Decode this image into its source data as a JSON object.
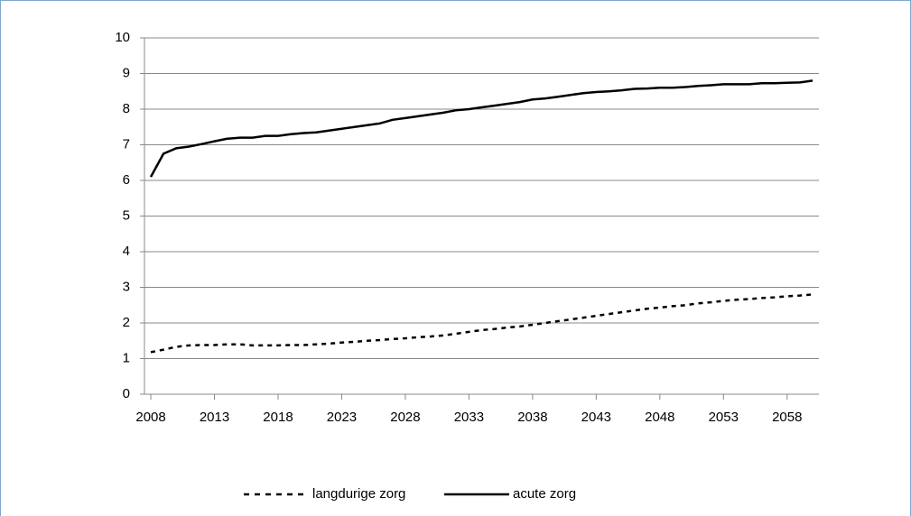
{
  "chart_data": {
    "type": "line",
    "x": [
      2008,
      2009,
      2010,
      2011,
      2012,
      2013,
      2014,
      2015,
      2016,
      2017,
      2018,
      2019,
      2020,
      2021,
      2022,
      2023,
      2024,
      2025,
      2026,
      2027,
      2028,
      2029,
      2030,
      2031,
      2032,
      2033,
      2034,
      2035,
      2036,
      2037,
      2038,
      2039,
      2040,
      2041,
      2042,
      2043,
      2044,
      2045,
      2046,
      2047,
      2048,
      2049,
      2050,
      2051,
      2052,
      2053,
      2054,
      2055,
      2056,
      2057,
      2058,
      2059,
      2060
    ],
    "series": [
      {
        "name": "langdurige zorg",
        "color": "#000000",
        "dashed": true,
        "values": [
          1.18,
          1.25,
          1.33,
          1.37,
          1.38,
          1.38,
          1.4,
          1.4,
          1.37,
          1.37,
          1.37,
          1.38,
          1.38,
          1.4,
          1.42,
          1.45,
          1.47,
          1.5,
          1.52,
          1.55,
          1.57,
          1.6,
          1.62,
          1.65,
          1.7,
          1.75,
          1.8,
          1.83,
          1.87,
          1.9,
          1.95,
          2.0,
          2.05,
          2.1,
          2.15,
          2.2,
          2.25,
          2.3,
          2.35,
          2.4,
          2.43,
          2.47,
          2.5,
          2.55,
          2.58,
          2.62,
          2.65,
          2.67,
          2.7,
          2.72,
          2.75,
          2.77,
          2.8
        ]
      },
      {
        "name": "acute zorg",
        "color": "#000000",
        "dashed": false,
        "values": [
          6.1,
          6.75,
          6.9,
          6.95,
          7.02,
          7.1,
          7.17,
          7.2,
          7.2,
          7.25,
          7.25,
          7.3,
          7.33,
          7.35,
          7.4,
          7.45,
          7.5,
          7.55,
          7.6,
          7.7,
          7.75,
          7.8,
          7.85,
          7.9,
          7.97,
          8.0,
          8.05,
          8.1,
          8.15,
          8.2,
          8.27,
          8.3,
          8.35,
          8.4,
          8.45,
          8.48,
          8.5,
          8.53,
          8.57,
          8.58,
          8.6,
          8.6,
          8.62,
          8.65,
          8.67,
          8.7,
          8.7,
          8.7,
          8.73,
          8.73,
          8.74,
          8.75,
          8.8
        ]
      }
    ],
    "xlim": [
      2007.5,
      2060.5
    ],
    "xticks": [
      2008,
      2013,
      2018,
      2023,
      2028,
      2033,
      2038,
      2043,
      2048,
      2053,
      2058
    ],
    "ylim": [
      0,
      10
    ],
    "yticks": [
      0,
      1,
      2,
      3,
      4,
      5,
      6,
      7,
      8,
      9,
      10
    ],
    "grid": true,
    "legend": "bottom"
  }
}
